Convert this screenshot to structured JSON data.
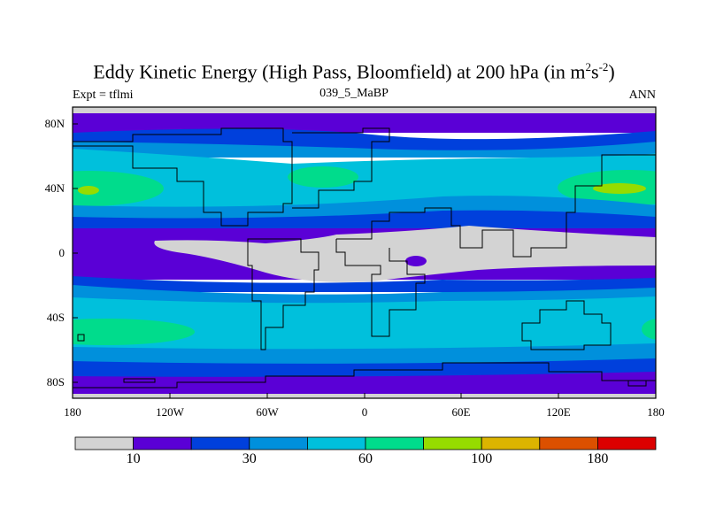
{
  "title": {
    "main": "Eddy Kinetic Energy (High Pass, Bloomfield) at 200 hPa (in m",
    "sup1": "2",
    "mid": "s",
    "sup2": "-2",
    "end": ")"
  },
  "subtitle_left": "Expt = tflmi",
  "subtitle_center": "039_5_MaBP",
  "subtitle_right": "ANN",
  "lat_labels": [
    "80N",
    "40N",
    "0",
    "40S",
    "80S"
  ],
  "lon_labels": [
    "180",
    "120W",
    "60W",
    "0",
    "60E",
    "120E",
    "180"
  ],
  "colors": {
    "bands": [
      "#d3d3d3",
      "#5a00d6",
      "#0040dc",
      "#0090dc",
      "#00c0dc",
      "#00dc8c",
      "#96dc00",
      "#dcb400",
      "#dc5000",
      "#dc0000"
    ]
  },
  "colorbar": {
    "labels": [
      "10",
      "30",
      "60",
      "100",
      "180"
    ]
  }
}
